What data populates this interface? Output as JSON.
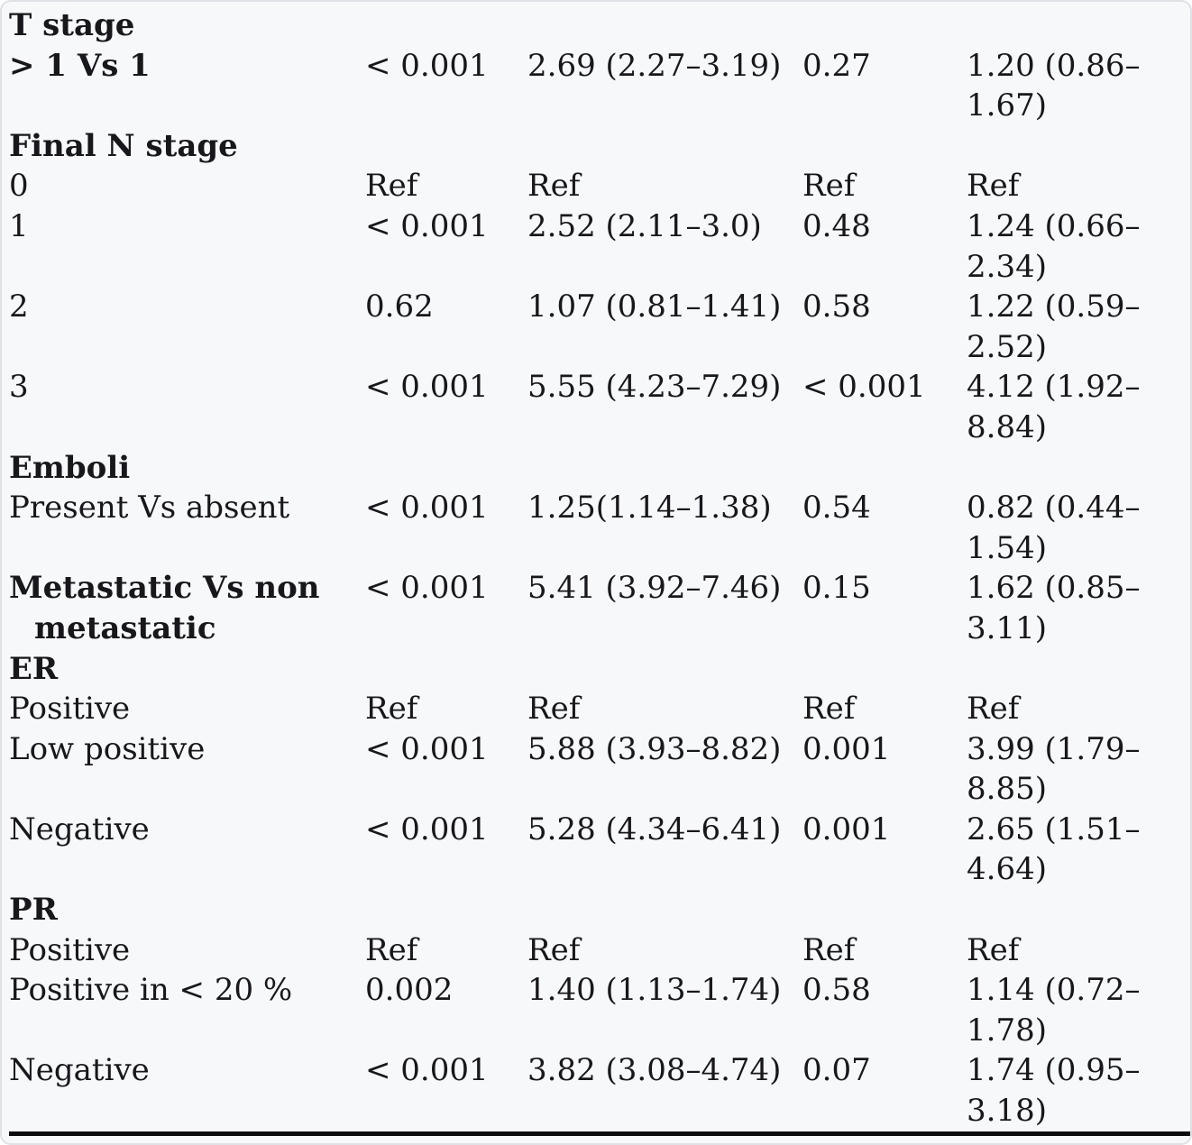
{
  "table": {
    "rows": [
      {
        "kind": "section",
        "bold": true,
        "cells": [
          "T stage",
          "",
          "",
          "",
          ""
        ]
      },
      {
        "kind": "data",
        "bold": true,
        "cells": [
          "> 1 Vs 1",
          "< 0.001",
          "2.69 (2.27–3.19)",
          "0.27",
          "1.20\n(0.86–1.67)"
        ]
      },
      {
        "kind": "section",
        "bold": true,
        "cells": [
          "Final N stage",
          "",
          "",
          "",
          ""
        ]
      },
      {
        "kind": "data",
        "bold": false,
        "cells": [
          "0",
          "Ref",
          "Ref",
          "Ref",
          "Ref"
        ]
      },
      {
        "kind": "data",
        "bold": false,
        "cells": [
          "1",
          "< 0.001",
          "2.52 (2.11–3.0)",
          "0.48",
          "1.24\n(0.66–2.34)"
        ]
      },
      {
        "kind": "data",
        "bold": false,
        "cells": [
          "2",
          "0.62",
          "1.07 (0.81–1.41)",
          "0.58",
          "1.22\n(0.59–2.52)"
        ]
      },
      {
        "kind": "data",
        "bold": false,
        "cells": [
          "3",
          "< 0.001",
          "5.55 (4.23–7.29)",
          "< 0.001",
          "4.12\n(1.92–8.84)"
        ]
      },
      {
        "kind": "section",
        "bold": true,
        "cells": [
          "Emboli",
          "",
          "",
          "",
          ""
        ]
      },
      {
        "kind": "data",
        "bold": false,
        "cells": [
          "Present Vs absent",
          "< 0.001",
          "1.25(1.14–1.38)",
          "0.54",
          "0.82\n(0.44–1.54)"
        ]
      },
      {
        "kind": "data",
        "bold": true,
        "cells": [
          "Metastatic Vs non metastatic",
          "< 0.001",
          "5.41 (3.92–7.46)",
          "0.15",
          "1.62\n(0.85–3.11)"
        ]
      },
      {
        "kind": "section",
        "bold": true,
        "cells": [
          "ER",
          "",
          "",
          "",
          ""
        ]
      },
      {
        "kind": "data",
        "bold": false,
        "cells": [
          "Positive",
          "Ref",
          "Ref",
          "Ref",
          "Ref"
        ]
      },
      {
        "kind": "data",
        "bold": false,
        "cells": [
          "Low positive",
          "< 0.001",
          "5.88 (3.93–8.82)",
          "0.001",
          "3.99\n(1.79–8.85)"
        ]
      },
      {
        "kind": "data",
        "bold": false,
        "cells": [
          "Negative",
          "< 0.001",
          "5.28 (4.34–6.41)",
          "0.001",
          "2.65\n(1.51–4.64)"
        ]
      },
      {
        "kind": "section",
        "bold": true,
        "cells": [
          "PR",
          "",
          "",
          "",
          ""
        ]
      },
      {
        "kind": "data",
        "bold": false,
        "cells": [
          "Positive",
          "Ref",
          "Ref",
          "Ref",
          "Ref"
        ]
      },
      {
        "kind": "data",
        "bold": false,
        "cells": [
          "Positive in < 20 %",
          "0.002",
          "1.40 (1.13–1.74)",
          "0.58",
          "1.14\n(0.72–1.78)"
        ]
      },
      {
        "kind": "data",
        "bold": false,
        "cells": [
          "Negative",
          "< 0.001",
          "3.82 (3.08–4.74)",
          "0.07",
          "1.74\n(0.95–3.18)"
        ]
      }
    ]
  }
}
